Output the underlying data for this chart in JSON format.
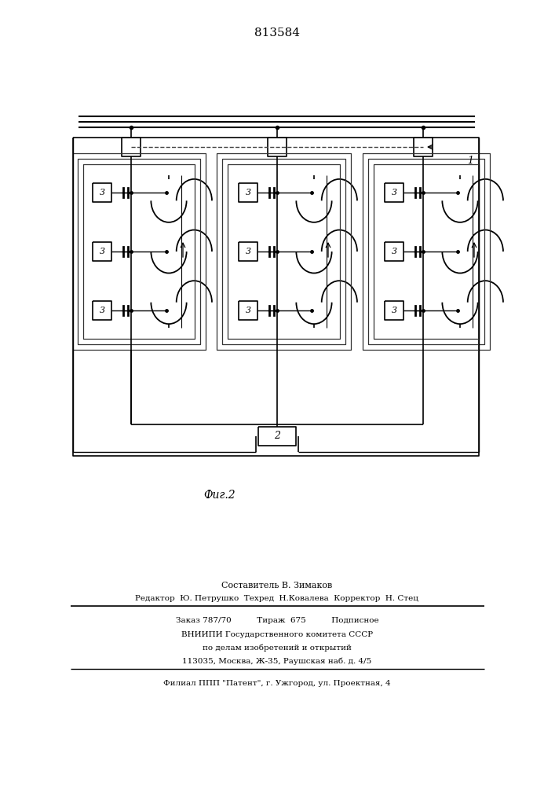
{
  "patent_number": "813584",
  "fig_label": "Фиг.2",
  "label_1": "1",
  "label_2": "2",
  "label_3": "3",
  "footer_line1": "Составитель В. Зимаков",
  "footer_line2": "Редактор  Ю. Петрушко  Техред  Н.Ковалева  Корректор  Н. Стец",
  "footer_line3": "Заказ 787/70          Тираж  675          Подписное",
  "footer_line4": "ВНИИПИ Государственного комитета СССР",
  "footer_line5": "по делам изобретений и открытий",
  "footer_line6": "113035, Москва, Ж-35, Раушская наб. д. 4/5",
  "footer_line7": "Филиал ППП \"Патент\", г. Ужгород, ул. Проектная, 4",
  "bg_color": "#ffffff",
  "line_color": "#000000"
}
